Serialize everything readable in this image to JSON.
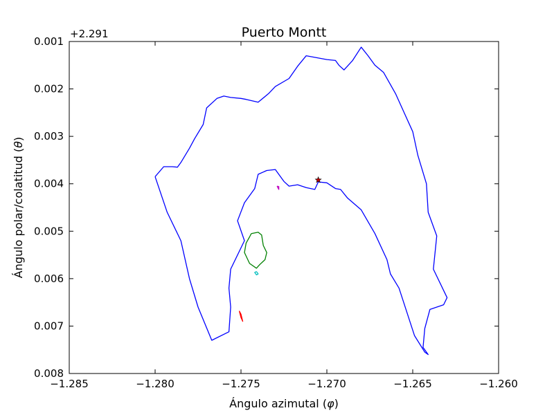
{
  "chart_data": {
    "type": "line",
    "title": "Puerto Montt",
    "xlabel": "Ángulo azimutal ($\\varphi$)",
    "ylabel": "Ángulo polar/colatitud ($\\theta$)",
    "xlabel_parts": {
      "pre": "Ángulo azimutal (",
      "sym": "φ",
      "post": ")"
    },
    "ylabel_parts": {
      "pre": "Ángulo polar/colatitud (",
      "sym": "θ",
      "post": ")"
    },
    "y_offset_text": "+2.291",
    "xlim": [
      -1.285,
      -1.26
    ],
    "ylim": [
      0.008,
      0.001
    ],
    "y_inverted": true,
    "grid": false,
    "xticks": [
      -1.285,
      -1.28,
      -1.275,
      -1.27,
      -1.265,
      -1.26
    ],
    "xtick_labels": [
      "−1.285",
      "−1.280",
      "−1.275",
      "−1.270",
      "−1.265",
      "−1.260"
    ],
    "yticks": [
      0.001,
      0.002,
      0.003,
      0.004,
      0.005,
      0.006,
      0.007,
      0.008
    ],
    "ytick_labels": [
      "0.001",
      "0.002",
      "0.003",
      "0.004",
      "0.005",
      "0.006",
      "0.007",
      "0.008"
    ],
    "series": [
      {
        "color": "#0000ff",
        "x": [
          -1.28,
          -1.2795,
          -1.279,
          -1.2787,
          -1.2785,
          -1.278,
          -1.2777,
          -1.2772,
          -1.277,
          -1.2764,
          -1.276,
          -1.2756,
          -1.275,
          -1.2747,
          -1.274,
          -1.2734,
          -1.273,
          -1.2722,
          -1.2717,
          -1.2712,
          -1.27,
          -1.2695,
          -1.2693,
          -1.269,
          -1.2685,
          -1.268,
          -1.2676,
          -1.2672,
          -1.2667,
          -1.266,
          -1.2655,
          -1.265,
          -1.2647,
          -1.2642,
          -1.2641,
          -1.2636,
          -1.2638,
          -1.263,
          -1.2632,
          -1.264,
          -1.2643,
          -1.2644,
          -1.2641,
          -1.2643,
          -1.2649,
          -1.2658,
          -1.2663,
          -1.2665,
          -1.2672,
          -1.268,
          -1.2688,
          -1.2692,
          -1.2695,
          -1.27,
          -1.2705,
          -1.2707,
          -1.2712,
          -1.2717,
          -1.2722,
          -1.2725,
          -1.273,
          -1.2735,
          -1.274,
          -1.2742,
          -1.2748,
          -1.2752,
          -1.2748,
          -1.2756,
          -1.2757,
          -1.2756,
          -1.2757,
          -1.2767,
          -1.2775,
          -1.278,
          -1.2785,
          -1.2793,
          -1.28
        ],
        "y": [
          0.00385,
          0.00364,
          0.00364,
          0.00365,
          0.00355,
          0.00325,
          0.00305,
          0.00275,
          0.0024,
          0.0022,
          0.00215,
          0.00218,
          0.0022,
          0.00222,
          0.00228,
          0.0021,
          0.00195,
          0.00178,
          0.00152,
          0.0013,
          0.00138,
          0.0014,
          0.0015,
          0.0016,
          0.0014,
          0.00112,
          0.0013,
          0.0015,
          0.00165,
          0.0021,
          0.0025,
          0.0029,
          0.0034,
          0.004,
          0.0046,
          0.0051,
          0.0058,
          0.0064,
          0.00655,
          0.00665,
          0.00705,
          0.00745,
          0.0076,
          0.00755,
          0.0072,
          0.0062,
          0.0059,
          0.0056,
          0.00505,
          0.00455,
          0.0043,
          0.00412,
          0.0041,
          0.00398,
          0.00396,
          0.00412,
          0.00408,
          0.00402,
          0.00405,
          0.00395,
          0.0037,
          0.00372,
          0.0038,
          0.0041,
          0.0044,
          0.00478,
          0.0052,
          0.0058,
          0.0062,
          0.0066,
          0.00712,
          0.0073,
          0.0066,
          0.006,
          0.0052,
          0.0046,
          0.00385
        ]
      },
      {
        "color": "#008000",
        "x": [
          -1.2744,
          -1.274,
          -1.2738,
          -1.2737,
          -1.2735,
          -1.2736,
          -1.2739,
          -1.2741,
          -1.2745,
          -1.2748,
          -1.2747,
          -1.2745,
          -1.2744
        ],
        "y": [
          0.00505,
          0.00502,
          0.00508,
          0.0053,
          0.00545,
          0.0056,
          0.0057,
          0.00578,
          0.00568,
          0.00545,
          0.00525,
          0.00512,
          0.00505
        ]
      },
      {
        "color": "#00bfbf",
        "x": [
          -1.2741,
          -1.274,
          -1.2741,
          -1.2742,
          -1.2741
        ],
        "y": [
          0.00585,
          0.0059,
          0.00592,
          0.00587,
          0.00585
        ]
      },
      {
        "color": "#ff0000",
        "x": [
          -1.2751,
          -1.275,
          -1.2749,
          -1.275,
          -1.2751
        ],
        "y": [
          0.00668,
          0.00675,
          0.0069,
          0.00682,
          0.00668
        ]
      },
      {
        "color": "#bf00bf",
        "x": [
          -1.2729,
          -1.2728,
          -1.2728,
          -1.2729
        ],
        "y": [
          0.00405,
          0.00406,
          0.00412,
          0.00405
        ]
      }
    ],
    "markers": [
      {
        "x": -1.2705,
        "y": 0.00392,
        "color": "#bf0000",
        "symbol": "star"
      }
    ]
  }
}
